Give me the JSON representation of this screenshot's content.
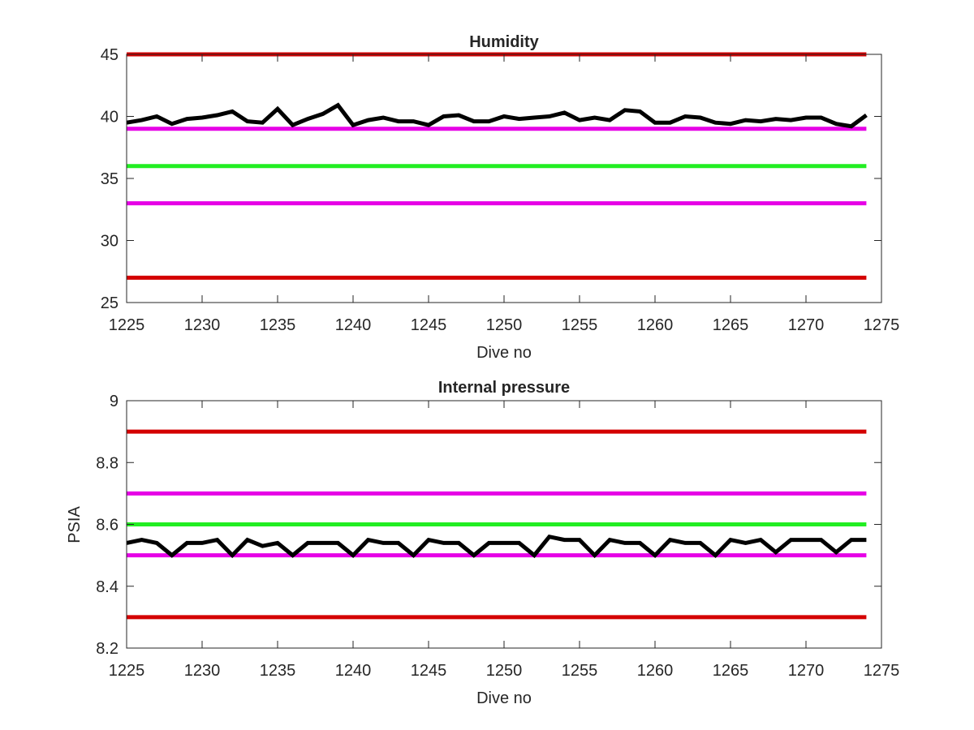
{
  "chart_data": [
    {
      "type": "line",
      "title": "Humidity",
      "xlabel": "Dive no",
      "ylabel": "",
      "xlim": [
        1225,
        1275
      ],
      "ylim": [
        25,
        45
      ],
      "xticks": [
        1225,
        1230,
        1235,
        1240,
        1245,
        1250,
        1255,
        1260,
        1265,
        1270,
        1275
      ],
      "yticks": [
        25,
        30,
        35,
        40,
        45
      ],
      "xtick_labels": [
        "1225",
        "1230",
        "1235",
        "1240",
        "1245",
        "1250",
        "1255",
        "1260",
        "1265",
        "1270",
        "1275"
      ],
      "ytick_labels": [
        "25",
        "30",
        "35",
        "40",
        "45"
      ],
      "grid": false,
      "reference_lines": [
        {
          "y": 45,
          "color": "#d40000"
        },
        {
          "y": 39,
          "color": "#e600e6"
        },
        {
          "y": 36,
          "color": "#22ee22"
        },
        {
          "y": 33,
          "color": "#e600e6"
        },
        {
          "y": 27,
          "color": "#d40000"
        }
      ],
      "series": [
        {
          "color": "#000000",
          "x": [
            1225,
            1226,
            1227,
            1228,
            1229,
            1230,
            1231,
            1232,
            1233,
            1234,
            1235,
            1236,
            1237,
            1238,
            1239,
            1240,
            1241,
            1242,
            1243,
            1244,
            1245,
            1246,
            1247,
            1248,
            1249,
            1250,
            1251,
            1252,
            1253,
            1254,
            1255,
            1256,
            1257,
            1258,
            1259,
            1260,
            1261,
            1262,
            1263,
            1264,
            1265,
            1266,
            1267,
            1268,
            1269,
            1270,
            1271,
            1272,
            1273,
            1274
          ],
          "y": [
            39.5,
            39.7,
            40.0,
            39.4,
            39.8,
            39.9,
            40.1,
            40.4,
            39.6,
            39.5,
            40.6,
            39.3,
            39.8,
            40.2,
            40.9,
            39.3,
            39.7,
            39.9,
            39.6,
            39.6,
            39.3,
            40.0,
            40.1,
            39.6,
            39.6,
            40.0,
            39.8,
            39.9,
            40.0,
            40.3,
            39.7,
            39.9,
            39.7,
            40.5,
            40.4,
            39.5,
            39.5,
            40.0,
            39.9,
            39.5,
            39.4,
            39.7,
            39.6,
            39.8,
            39.7,
            39.9,
            39.9,
            39.4,
            39.2,
            40.1
          ]
        }
      ]
    },
    {
      "type": "line",
      "title": "Internal pressure",
      "xlabel": "Dive no",
      "ylabel": "PSIA",
      "xlim": [
        1225,
        1275
      ],
      "ylim": [
        8.2,
        9.0
      ],
      "xticks": [
        1225,
        1230,
        1235,
        1240,
        1245,
        1250,
        1255,
        1260,
        1265,
        1270,
        1275
      ],
      "yticks": [
        8.2,
        8.4,
        8.6,
        8.8,
        9.0
      ],
      "xtick_labels": [
        "1225",
        "1230",
        "1235",
        "1240",
        "1245",
        "1250",
        "1255",
        "1260",
        "1265",
        "1270",
        "1275"
      ],
      "ytick_labels": [
        "8.2",
        "8.4",
        "8.6",
        "8.8",
        "9"
      ],
      "grid": false,
      "reference_lines": [
        {
          "y": 8.9,
          "color": "#d40000"
        },
        {
          "y": 8.7,
          "color": "#e600e6"
        },
        {
          "y": 8.6,
          "color": "#22ee22"
        },
        {
          "y": 8.5,
          "color": "#e600e6"
        },
        {
          "y": 8.3,
          "color": "#d40000"
        }
      ],
      "series": [
        {
          "color": "#000000",
          "x": [
            1225,
            1226,
            1227,
            1228,
            1229,
            1230,
            1231,
            1232,
            1233,
            1234,
            1235,
            1236,
            1237,
            1238,
            1239,
            1240,
            1241,
            1242,
            1243,
            1244,
            1245,
            1246,
            1247,
            1248,
            1249,
            1250,
            1251,
            1252,
            1253,
            1254,
            1255,
            1256,
            1257,
            1258,
            1259,
            1260,
            1261,
            1262,
            1263,
            1264,
            1265,
            1266,
            1267,
            1268,
            1269,
            1270,
            1271,
            1272,
            1273,
            1274
          ],
          "y": [
            8.54,
            8.55,
            8.54,
            8.5,
            8.54,
            8.54,
            8.55,
            8.5,
            8.55,
            8.53,
            8.54,
            8.5,
            8.54,
            8.54,
            8.54,
            8.5,
            8.55,
            8.54,
            8.54,
            8.5,
            8.55,
            8.54,
            8.54,
            8.5,
            8.54,
            8.54,
            8.54,
            8.5,
            8.56,
            8.55,
            8.55,
            8.5,
            8.55,
            8.54,
            8.54,
            8.5,
            8.55,
            8.54,
            8.54,
            8.5,
            8.55,
            8.54,
            8.55,
            8.51,
            8.55,
            8.55,
            8.55,
            8.51,
            8.55,
            8.55
          ]
        }
      ]
    }
  ]
}
